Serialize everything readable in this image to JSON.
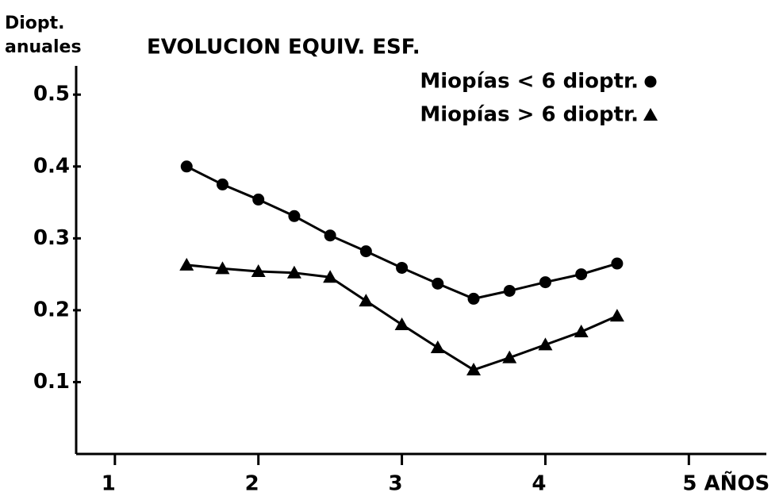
{
  "chart_data": {
    "type": "line",
    "title": "EVOLUCION EQUIV. ESF.",
    "ylabel_lines": [
      "Diopt.",
      "anuales"
    ],
    "x": [
      1.5,
      1.75,
      2,
      2.25,
      2.5,
      2.75,
      3,
      3.25,
      3.5,
      3.75,
      4,
      4.25,
      4.5
    ],
    "series": [
      {
        "name": "Miopías < 6 dioptr.",
        "marker": "circle",
        "color": "#000000",
        "values": [
          0.4,
          0.375,
          0.354,
          0.331,
          0.304,
          0.282,
          0.259,
          0.237,
          0.216,
          0.227,
          0.239,
          0.25,
          0.265
        ]
      },
      {
        "name": "Miopías > 6 dioptr.",
        "marker": "triangle",
        "color": "#000000",
        "values": [
          0.263,
          0.258,
          0.254,
          0.252,
          0.246,
          0.213,
          0.18,
          0.148,
          0.117,
          0.134,
          0.152,
          0.17,
          0.192
        ]
      }
    ],
    "xlim": [
      0.73,
      5.54
    ],
    "xticks": [
      1,
      2,
      3,
      4,
      {
        "value": 5,
        "label": "5 AÑOS"
      }
    ],
    "ylim": [
      0,
      0.54
    ],
    "yticks": [
      0.1,
      0.2,
      0.3,
      0.4,
      0.5
    ],
    "legend": "upper right"
  }
}
